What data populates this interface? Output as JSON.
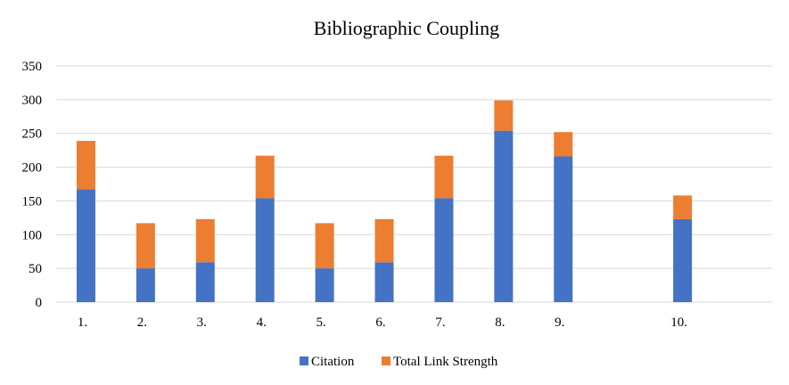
{
  "chart_data": {
    "type": "bar",
    "stacked": true,
    "title": "Bibliographic Coupling",
    "xlabel": "",
    "ylabel": "",
    "ylim": [
      0,
      350
    ],
    "yticks": [
      0,
      50,
      100,
      150,
      200,
      250,
      300,
      350
    ],
    "grid": true,
    "legend_position": "bottom",
    "categories": [
      "1.",
      "2.",
      "3.",
      "4.",
      "5.",
      "6.",
      "7.",
      "8.",
      "9.",
      "",
      "10.",
      ""
    ],
    "series": [
      {
        "name": "Citation",
        "color": "#4472c4",
        "values": [
          167,
          50,
          59,
          154,
          50,
          59,
          154,
          254,
          216,
          null,
          123,
          null
        ]
      },
      {
        "name": "Total Link Strength",
        "color": "#ed7d31",
        "values": [
          72,
          67,
          64,
          63,
          67,
          64,
          63,
          45,
          36,
          null,
          35,
          null
        ]
      }
    ]
  }
}
